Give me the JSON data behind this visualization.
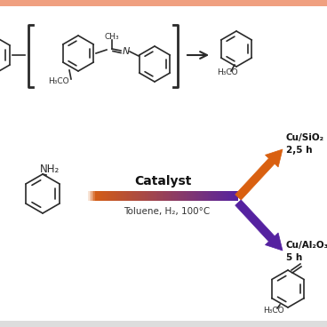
{
  "bg_color": "#ffffff",
  "border_top_color": "#f0a080",
  "border_bottom_color": "#e8e8e8",
  "catalyst_label": "Catalyst",
  "conditions_label": "Toluene, H₂, 100°C",
  "cu_sio2_label": "Cu/SiO₂\n2,5 h",
  "cu_al2o3_label": "Cu/Al₂O₃\n5 h",
  "arrow_orange": "#d96010",
  "arrow_purple": "#5522a0",
  "mol_color": "#2a2a2a",
  "lw": 1.2
}
